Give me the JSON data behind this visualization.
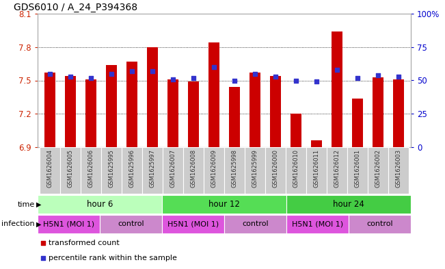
{
  "title": "GDS6010 / A_24_P394368",
  "samples": [
    "GSM1626004",
    "GSM1626005",
    "GSM1626006",
    "GSM1625995",
    "GSM1625996",
    "GSM1625997",
    "GSM1626007",
    "GSM1626008",
    "GSM1626009",
    "GSM1625998",
    "GSM1625999",
    "GSM1626000",
    "GSM1626010",
    "GSM1626011",
    "GSM1626012",
    "GSM1626001",
    "GSM1626002",
    "GSM1626003"
  ],
  "bar_values": [
    7.57,
    7.54,
    7.51,
    7.64,
    7.67,
    7.8,
    7.51,
    7.49,
    7.84,
    7.44,
    7.57,
    7.54,
    7.2,
    6.96,
    7.94,
    7.34,
    7.53,
    7.51
  ],
  "dot_values": [
    55,
    53,
    52,
    55,
    57,
    57,
    51,
    52,
    60,
    50,
    55,
    53,
    50,
    49,
    58,
    52,
    54,
    53
  ],
  "ymin": 6.9,
  "ymax": 8.1,
  "yticks": [
    6.9,
    7.2,
    7.5,
    7.8,
    8.1
  ],
  "ytick_labels": [
    "6.9",
    "7.2",
    "7.5",
    "7.8",
    "8.1"
  ],
  "y2min": 0,
  "y2max": 100,
  "y2ticks": [
    0,
    25,
    50,
    75,
    100
  ],
  "y2tick_labels": [
    "0",
    "25",
    "50",
    "75",
    "100%"
  ],
  "bar_color": "#cc0000",
  "dot_color": "#3333cc",
  "bar_base": 6.9,
  "time_groups": [
    {
      "label": "hour 6",
      "start": 0,
      "end": 6,
      "color": "#bbffbb"
    },
    {
      "label": "hour 12",
      "start": 6,
      "end": 12,
      "color": "#55dd55"
    },
    {
      "label": "hour 24",
      "start": 12,
      "end": 18,
      "color": "#44cc44"
    }
  ],
  "infection_groups": [
    {
      "label": "H5N1 (MOI 1)",
      "start": 0,
      "end": 3,
      "color": "#dd55dd"
    },
    {
      "label": "control",
      "start": 3,
      "end": 6,
      "color": "#cc88cc"
    },
    {
      "label": "H5N1 (MOI 1)",
      "start": 6,
      "end": 9,
      "color": "#dd55dd"
    },
    {
      "label": "control",
      "start": 9,
      "end": 12,
      "color": "#cc88cc"
    },
    {
      "label": "H5N1 (MOI 1)",
      "start": 12,
      "end": 15,
      "color": "#dd55dd"
    },
    {
      "label": "control",
      "start": 15,
      "end": 18,
      "color": "#cc88cc"
    }
  ],
  "legend_items": [
    {
      "label": "transformed count",
      "color": "#cc0000"
    },
    {
      "label": "percentile rank within the sample",
      "color": "#3333cc"
    }
  ],
  "axis_color_left": "#cc2200",
  "axis_color_right": "#0000cc",
  "xtick_bg": "#cccccc",
  "spine_color": "#aaaaaa"
}
